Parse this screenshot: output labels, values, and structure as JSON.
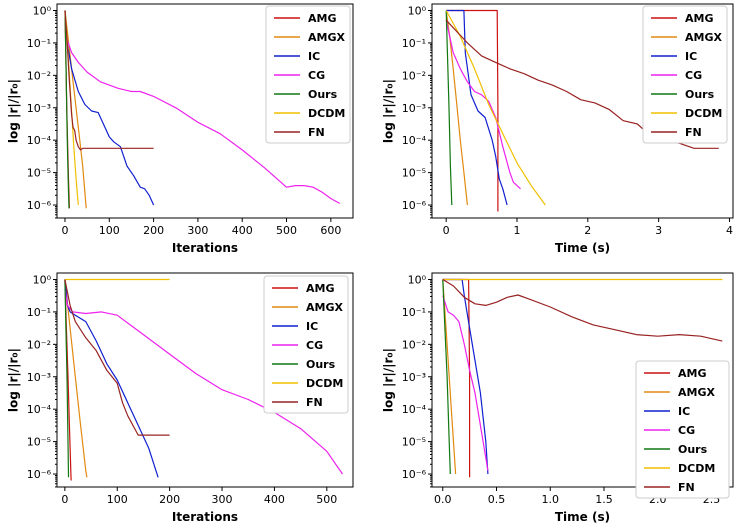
{
  "colors": {
    "AMG": "#cc1111",
    "AMGX": "#e08a10",
    "IC": "#1020d0",
    "CG": "#ee22ee",
    "Ours": "#117711",
    "DCDM": "#f0c000",
    "FN": "#992222"
  },
  "chart_data": [
    {
      "type": "line",
      "title": "",
      "xlabel": "Iterations",
      "ylabel": "log |r|/|r₀|",
      "yscale": "log",
      "xlim": [
        -18,
        650
      ],
      "ylim_exp": [
        -6.4,
        0.2
      ],
      "xticks": [
        0,
        100,
        200,
        300,
        400,
        500,
        600
      ],
      "xtick_labels": [
        "0",
        "100",
        "200",
        "300",
        "400",
        "500",
        "600"
      ],
      "ytick_labels": [
        "10⁰",
        "10⁻¹",
        "10⁻²",
        "10⁻³",
        "10⁻⁴",
        "10⁻⁵",
        "10⁻⁶"
      ],
      "legend_position": "upper-right",
      "series": [
        {
          "name": "AMG",
          "x": [
            0,
            2,
            4,
            6,
            8,
            10
          ],
          "logy": [
            0,
            -1.5,
            -2.9,
            -4.1,
            -5.2,
            -6.1
          ]
        },
        {
          "name": "AMGX",
          "x": [
            0,
            5,
            10,
            20,
            30,
            40,
            48
          ],
          "logy": [
            0,
            -0.6,
            -1.2,
            -2.4,
            -3.6,
            -4.8,
            -6.1
          ]
        },
        {
          "name": "IC",
          "x": [
            0,
            5,
            15,
            30,
            45,
            60,
            75,
            90,
            100,
            110,
            125,
            140,
            155,
            170,
            180,
            190,
            200
          ],
          "logy": [
            0,
            -1.0,
            -1.8,
            -2.5,
            -2.9,
            -3.1,
            -3.15,
            -3.6,
            -3.9,
            -4.05,
            -4.2,
            -4.8,
            -5.1,
            -5.45,
            -5.5,
            -5.7,
            -6.0
          ]
        },
        {
          "name": "CG",
          "x": [
            0,
            5,
            15,
            30,
            50,
            80,
            120,
            150,
            170,
            200,
            250,
            300,
            350,
            400,
            450,
            500,
            520,
            540,
            560,
            580,
            600,
            620
          ],
          "logy": [
            -0.55,
            -0.9,
            -1.3,
            -1.6,
            -1.9,
            -2.2,
            -2.4,
            -2.5,
            -2.5,
            -2.65,
            -3.0,
            -3.45,
            -3.8,
            -4.3,
            -4.85,
            -5.45,
            -5.4,
            -5.4,
            -5.45,
            -5.6,
            -5.8,
            -5.95
          ]
        },
        {
          "name": "Ours",
          "x": [
            0,
            2,
            4,
            6,
            8,
            9
          ],
          "logy": [
            0,
            -1.5,
            -3.0,
            -4.5,
            -5.6,
            -6.1
          ]
        },
        {
          "name": "DCDM",
          "x": [
            0,
            5,
            10,
            15,
            20,
            25,
            30
          ],
          "logy": [
            0,
            -0.9,
            -2.0,
            -3.1,
            -4.2,
            -5.2,
            -6.0
          ]
        },
        {
          "name": "FN",
          "x": [
            0,
            5,
            10,
            15,
            18,
            22,
            25,
            30,
            35,
            40,
            50,
            70,
            100,
            130,
            160,
            200
          ],
          "logy": [
            0,
            -1.0,
            -2.2,
            -3.2,
            -3.6,
            -3.7,
            -4.0,
            -4.2,
            -4.3,
            -4.25,
            -4.25,
            -4.25,
            -4.25,
            -4.25,
            -4.25,
            -4.25
          ]
        }
      ]
    },
    {
      "type": "line",
      "title": "",
      "xlabel": "Time (s)",
      "ylabel": "log |r|/|r₀|",
      "yscale": "log",
      "xlim": [
        -0.2,
        4.05
      ],
      "ylim_exp": [
        -6.4,
        0.2
      ],
      "xticks": [
        0,
        1,
        2,
        3,
        4
      ],
      "xtick_labels": [
        "0",
        "1",
        "2",
        "3",
        "4"
      ],
      "ytick_labels": [
        "10⁰",
        "10⁻¹",
        "10⁻²",
        "10⁻³",
        "10⁻⁴",
        "10⁻⁵",
        "10⁻⁶"
      ],
      "legend_position": "upper-right",
      "series": [
        {
          "name": "AMG",
          "x": [
            0,
            0.72,
            0.73,
            0.73
          ],
          "logy": [
            0,
            0,
            -3.0,
            -6.2
          ]
        },
        {
          "name": "AMGX",
          "x": [
            0,
            0.05,
            0.1,
            0.15,
            0.2,
            0.25,
            0.3
          ],
          "logy": [
            0,
            -0.8,
            -1.8,
            -2.9,
            -4.0,
            -5.0,
            -6.0
          ]
        },
        {
          "name": "IC",
          "x": [
            0,
            0.25,
            0.27,
            0.35,
            0.45,
            0.55,
            0.65,
            0.7,
            0.75,
            0.8,
            0.86
          ],
          "logy": [
            0,
            0,
            -1.3,
            -2.6,
            -3.1,
            -3.3,
            -4.0,
            -4.5,
            -5.2,
            -5.5,
            -6.0
          ]
        },
        {
          "name": "CG",
          "x": [
            0,
            0.05,
            0.1,
            0.2,
            0.3,
            0.4,
            0.5,
            0.6,
            0.7,
            0.8,
            0.9,
            0.95,
            1.0,
            1.05
          ],
          "logy": [
            -0.3,
            -0.8,
            -1.3,
            -1.8,
            -2.2,
            -2.5,
            -2.6,
            -2.8,
            -3.3,
            -4.2,
            -5.0,
            -5.3,
            -5.4,
            -5.5
          ]
        },
        {
          "name": "Ours",
          "x": [
            0,
            0.02,
            0.04,
            0.06,
            0.08
          ],
          "logy": [
            0,
            -1.5,
            -3.0,
            -4.8,
            -6.0
          ]
        },
        {
          "name": "DCDM",
          "x": [
            0,
            0.2,
            0.4,
            0.6,
            0.8,
            1.0,
            1.2,
            1.4
          ],
          "logy": [
            0,
            -0.8,
            -1.8,
            -2.9,
            -3.8,
            -4.7,
            -5.4,
            -6.0
          ]
        },
        {
          "name": "FN",
          "x": [
            0,
            0.3,
            0.5,
            0.7,
            0.9,
            1.1,
            1.3,
            1.5,
            1.7,
            1.9,
            2.1,
            2.3,
            2.5,
            2.7,
            2.9,
            3.1,
            3.3,
            3.5,
            3.7,
            3.85
          ],
          "logy": [
            -0.3,
            -1.0,
            -1.4,
            -1.6,
            -1.8,
            -1.95,
            -2.15,
            -2.3,
            -2.5,
            -2.75,
            -2.85,
            -3.05,
            -3.4,
            -3.5,
            -3.9,
            -4.0,
            -4.1,
            -4.25,
            -4.25,
            -4.25
          ]
        }
      ]
    },
    {
      "type": "line",
      "title": "",
      "xlabel": "Iterations",
      "ylabel": "log |r|/|r₀|",
      "yscale": "log",
      "xlim": [
        -15,
        550
      ],
      "ylim_exp": [
        -6.4,
        0.2
      ],
      "xticks": [
        0,
        100,
        200,
        300,
        400,
        500
      ],
      "xtick_labels": [
        "0",
        "100",
        "200",
        "300",
        "400",
        "500"
      ],
      "ytick_labels": [
        "10⁰",
        "10⁻¹",
        "10⁻²",
        "10⁻³",
        "10⁻⁴",
        "10⁻⁵",
        "10⁻⁶"
      ],
      "legend_position": "upper-right",
      "series": [
        {
          "name": "AMG",
          "x": [
            0,
            3,
            6,
            9,
            12
          ],
          "logy": [
            0,
            -1.5,
            -3.0,
            -4.7,
            -6.2
          ]
        },
        {
          "name": "AMGX",
          "x": [
            0,
            10,
            20,
            30,
            40,
            42
          ],
          "logy": [
            0,
            -1.5,
            -3.0,
            -4.5,
            -5.9,
            -6.1
          ]
        },
        {
          "name": "IC",
          "x": [
            0,
            5,
            10,
            20,
            40,
            60,
            80,
            100,
            120,
            140,
            160,
            178
          ],
          "logy": [
            0,
            -0.8,
            -1.0,
            -1.1,
            -1.3,
            -1.9,
            -2.6,
            -3.1,
            -3.8,
            -4.5,
            -5.2,
            -6.1
          ]
        },
        {
          "name": "CG",
          "x": [
            0,
            5,
            15,
            40,
            70,
            100,
            150,
            200,
            250,
            300,
            350,
            400,
            450,
            500,
            530
          ],
          "logy": [
            -0.3,
            -0.8,
            -1.0,
            -1.05,
            -1.0,
            -1.1,
            -1.7,
            -2.3,
            -2.9,
            -3.4,
            -3.7,
            -4.1,
            -4.6,
            -5.3,
            -6.0
          ]
        },
        {
          "name": "Ours",
          "x": [
            0,
            2,
            4,
            6,
            7
          ],
          "logy": [
            0,
            -1.5,
            -3.0,
            -5.0,
            -6.1
          ]
        },
        {
          "name": "DCDM",
          "x": [
            0,
            100,
            200
          ],
          "logy": [
            0,
            0,
            0
          ]
        },
        {
          "name": "FN",
          "x": [
            0,
            5,
            10,
            20,
            40,
            60,
            80,
            100,
            110,
            120,
            140,
            160,
            200
          ],
          "logy": [
            0,
            -0.4,
            -0.8,
            -1.3,
            -1.8,
            -2.2,
            -2.8,
            -3.2,
            -3.8,
            -4.2,
            -4.8,
            -4.8,
            -4.8
          ]
        }
      ]
    },
    {
      "type": "line",
      "title": "",
      "xlabel": "Time (s)",
      "ylabel": "log |r|/|r₀|",
      "yscale": "log",
      "xlim": [
        -0.1,
        2.7
      ],
      "ylim_exp": [
        -6.4,
        0.2
      ],
      "xticks": [
        0,
        0.5,
        1.0,
        1.5,
        2.0,
        2.5
      ],
      "xtick_labels": [
        "0.0",
        "0.5",
        "1.0",
        "1.5",
        "2.0",
        "2.5"
      ],
      "ytick_labels": [
        "10⁰",
        "10⁻¹",
        "10⁻²",
        "10⁻³",
        "10⁻⁴",
        "10⁻⁵",
        "10⁻⁶"
      ],
      "legend_position": "lower-right",
      "series": [
        {
          "name": "AMG",
          "x": [
            0,
            0.24,
            0.25,
            0.25
          ],
          "logy": [
            0,
            0,
            -3.0,
            -6.1
          ]
        },
        {
          "name": "AMGX",
          "x": [
            0,
            0.03,
            0.06,
            0.09,
            0.12
          ],
          "logy": [
            0,
            -1.5,
            -3.0,
            -4.5,
            -6.0
          ]
        },
        {
          "name": "IC",
          "x": [
            0,
            0.18,
            0.2,
            0.25,
            0.3,
            0.35,
            0.4,
            0.42
          ],
          "logy": [
            0,
            0,
            -0.5,
            -1.5,
            -2.5,
            -3.5,
            -5.0,
            -6.0
          ]
        },
        {
          "name": "CG",
          "x": [
            0,
            0.05,
            0.1,
            0.15,
            0.2,
            0.25,
            0.3,
            0.35,
            0.4,
            0.42
          ],
          "logy": [
            -0.5,
            -1.0,
            -1.1,
            -1.3,
            -2.0,
            -2.8,
            -3.5,
            -4.5,
            -5.5,
            -5.9
          ]
        },
        {
          "name": "Ours",
          "x": [
            0,
            0.02,
            0.04,
            0.06,
            0.07
          ],
          "logy": [
            0,
            -1.5,
            -3.0,
            -5.0,
            -6.0
          ]
        },
        {
          "name": "DCDM",
          "x": [
            0,
            2.6
          ],
          "logy": [
            0,
            0
          ]
        },
        {
          "name": "FN",
          "x": [
            0,
            0.1,
            0.2,
            0.3,
            0.4,
            0.5,
            0.6,
            0.7,
            0.8,
            1.0,
            1.2,
            1.4,
            1.6,
            1.8,
            2.0,
            2.2,
            2.4,
            2.6
          ],
          "logy": [
            0,
            -0.2,
            -0.55,
            -0.75,
            -0.8,
            -0.7,
            -0.55,
            -0.48,
            -0.6,
            -0.85,
            -1.15,
            -1.4,
            -1.55,
            -1.7,
            -1.75,
            -1.7,
            -1.75,
            -1.9
          ]
        }
      ]
    }
  ]
}
